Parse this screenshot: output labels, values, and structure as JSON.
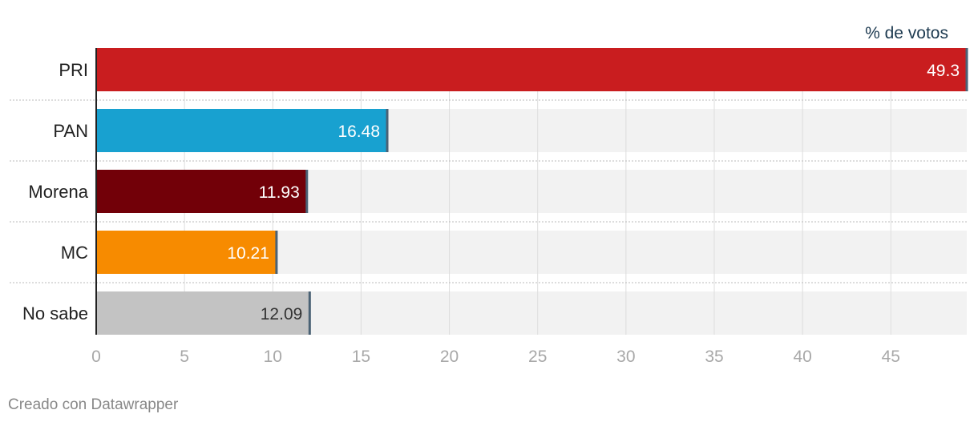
{
  "chart_data": {
    "type": "bar",
    "orientation": "horizontal",
    "unit_label": "% de votos",
    "categories": [
      "PRI",
      "PAN",
      "Morena",
      "MC",
      "No sabe"
    ],
    "values": [
      49.3,
      16.48,
      11.93,
      10.21,
      12.09
    ],
    "value_labels": [
      "49.3",
      "16.48",
      "11.93",
      "10.21",
      "12.09"
    ],
    "colors": [
      "#c91d1f",
      "#18a1d0",
      "#720008",
      "#f78b00",
      "#c3c3c3"
    ],
    "label_colors": [
      "#ffffff",
      "#ffffff",
      "#ffffff",
      "#ffffff",
      "#333333"
    ],
    "xlim": [
      0,
      49.3
    ],
    "xticks": [
      0,
      5,
      10,
      15,
      20,
      25,
      30,
      35,
      40,
      45
    ],
    "grid": true,
    "background_track_color": "#f2f2f2"
  },
  "footer": {
    "credit": "Creado con Datawrapper"
  }
}
